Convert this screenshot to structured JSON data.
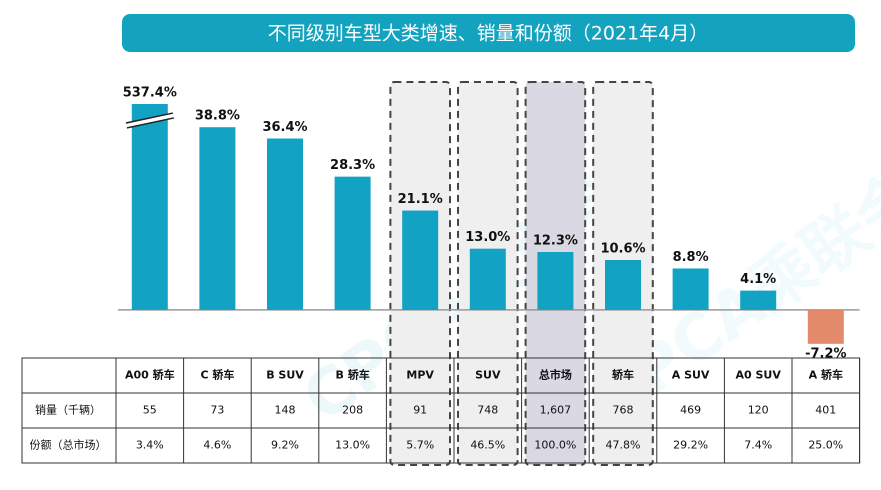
{
  "chart_data": {
    "type": "bar",
    "title": "不同级别车型大类增速、销量和份额（2021年4月）",
    "categories": [
      "A00 轿车",
      "C 轿车",
      "B SUV",
      "B 轿车",
      "MPV",
      "SUV",
      "总市场",
      "轿车",
      "A SUV",
      "A0 SUV",
      "A 轿车"
    ],
    "values": [
      537.4,
      38.8,
      36.4,
      28.3,
      21.1,
      13.0,
      12.3,
      10.6,
      8.8,
      4.1,
      -7.2
    ],
    "value_labels": [
      "537.4%",
      "38.8%",
      "36.4%",
      "28.3%",
      "21.1%",
      "13.0%",
      "12.3%",
      "10.6%",
      "8.8%",
      "4.1%",
      "-7.2%"
    ],
    "color": "#12a2c4",
    "negative_color": "#e38a6a",
    "ylim": [
      -10,
      45
    ],
    "axis_break": true
  },
  "table": {
    "rows": [
      {
        "label": "销量（千辆）",
        "values": [
          "55",
          "73",
          "148",
          "208",
          "91",
          "748",
          "1,607",
          "768",
          "469",
          "120",
          "401"
        ]
      },
      {
        "label": "份额（总市场）",
        "values": [
          "3.4%",
          "4.6%",
          "9.2%",
          "13.0%",
          "5.7%",
          "46.5%",
          "100.0%",
          "47.8%",
          "29.2%",
          "7.4%",
          "25.0%"
        ]
      }
    ]
  },
  "watermark": "CPCA乘联会"
}
